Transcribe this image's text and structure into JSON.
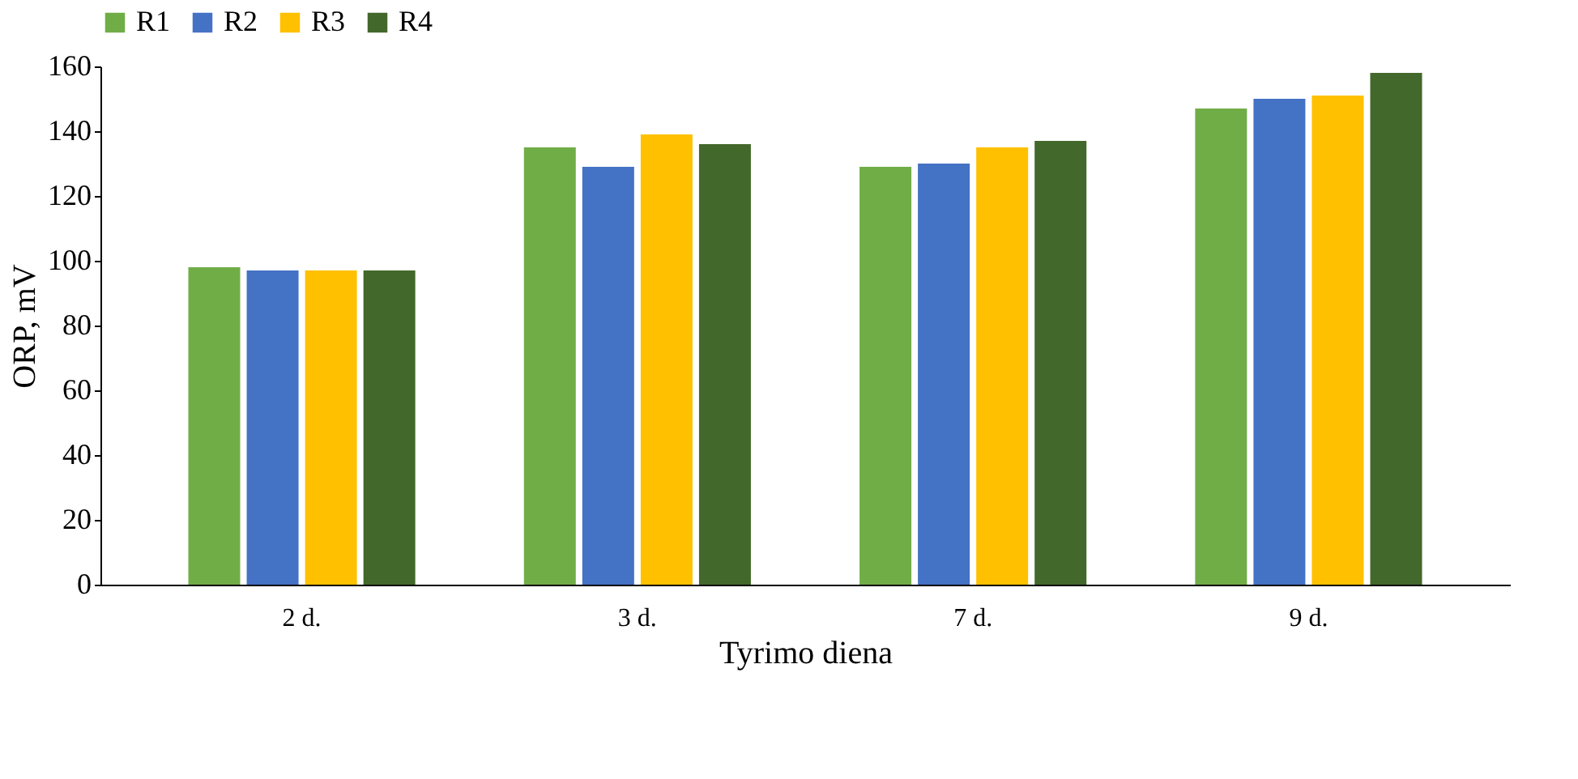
{
  "chart_data": {
    "type": "bar",
    "xlabel": "Tyrimo diena",
    "ylabel": "ORP, mV",
    "categories": [
      "2 d.",
      "3 d.",
      "7 d.",
      "9 d."
    ],
    "series": [
      {
        "name": "R1",
        "color": "#70ad47",
        "values": [
          98,
          135,
          129,
          147
        ]
      },
      {
        "name": "R2",
        "color": "#4472c4",
        "values": [
          97,
          129,
          130,
          150
        ]
      },
      {
        "name": "R3",
        "color": "#ffc000",
        "values": [
          97,
          139,
          135,
          151
        ]
      },
      {
        "name": "R4",
        "color": "#43682b",
        "values": [
          97,
          136,
          137,
          158
        ]
      }
    ],
    "ylim": [
      0,
      160
    ],
    "yticks": [
      0,
      20,
      40,
      60,
      80,
      100,
      120,
      140,
      160
    ],
    "grid": false,
    "legend": "top"
  }
}
